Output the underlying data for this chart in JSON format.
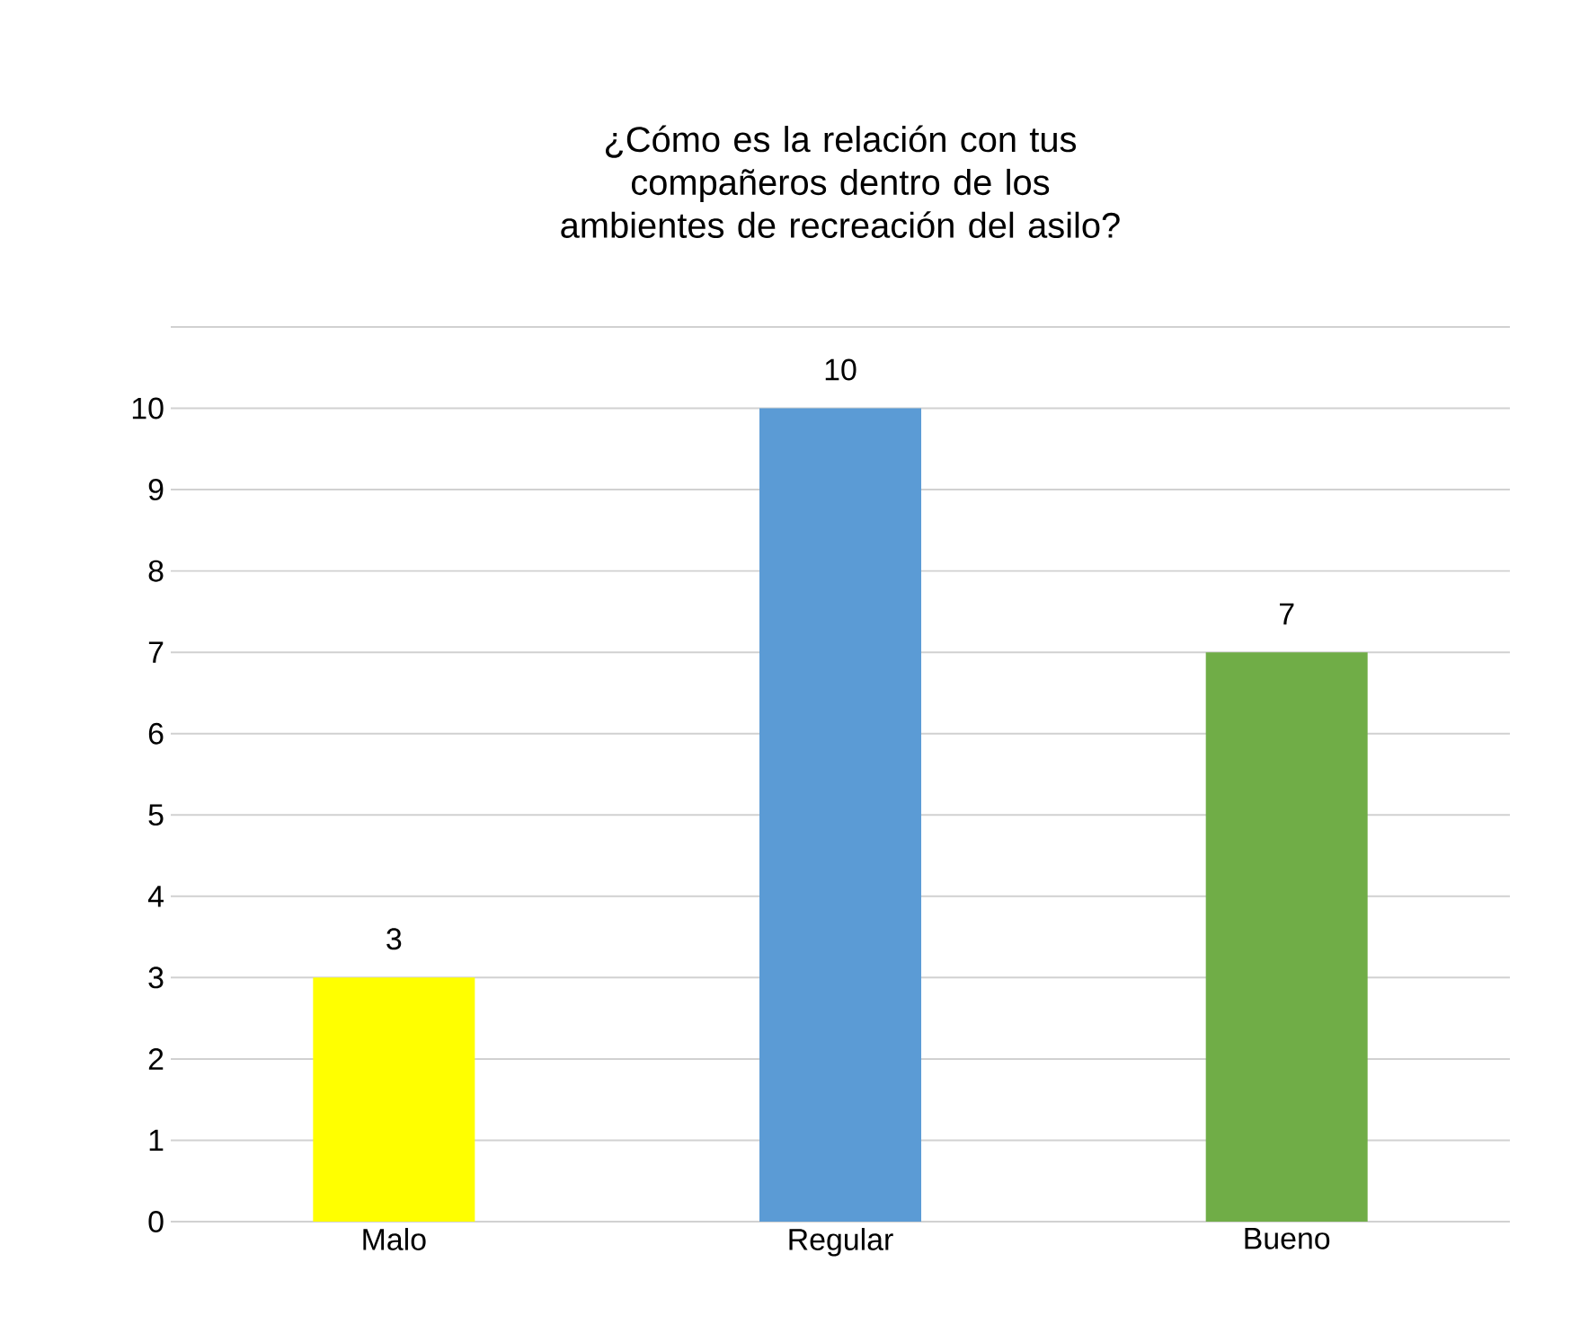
{
  "chart_data": {
    "type": "bar",
    "title": "¿Cómo es la relación con tus compañeros dentro de los ambientes de recreación del asilo?",
    "categories": [
      "Malo",
      "Regular",
      "Bueno"
    ],
    "values": [
      3,
      10,
      7
    ],
    "colors": [
      "#ffff00",
      "#5b9bd5",
      "#70ad47"
    ],
    "ylim": [
      0,
      11
    ],
    "yticks": [
      0,
      1,
      2,
      3,
      4,
      5,
      6,
      7,
      8,
      9,
      10,
      {
        "value": 11,
        "label": null
      }
    ],
    "grid": "y",
    "data_labels": true
  }
}
